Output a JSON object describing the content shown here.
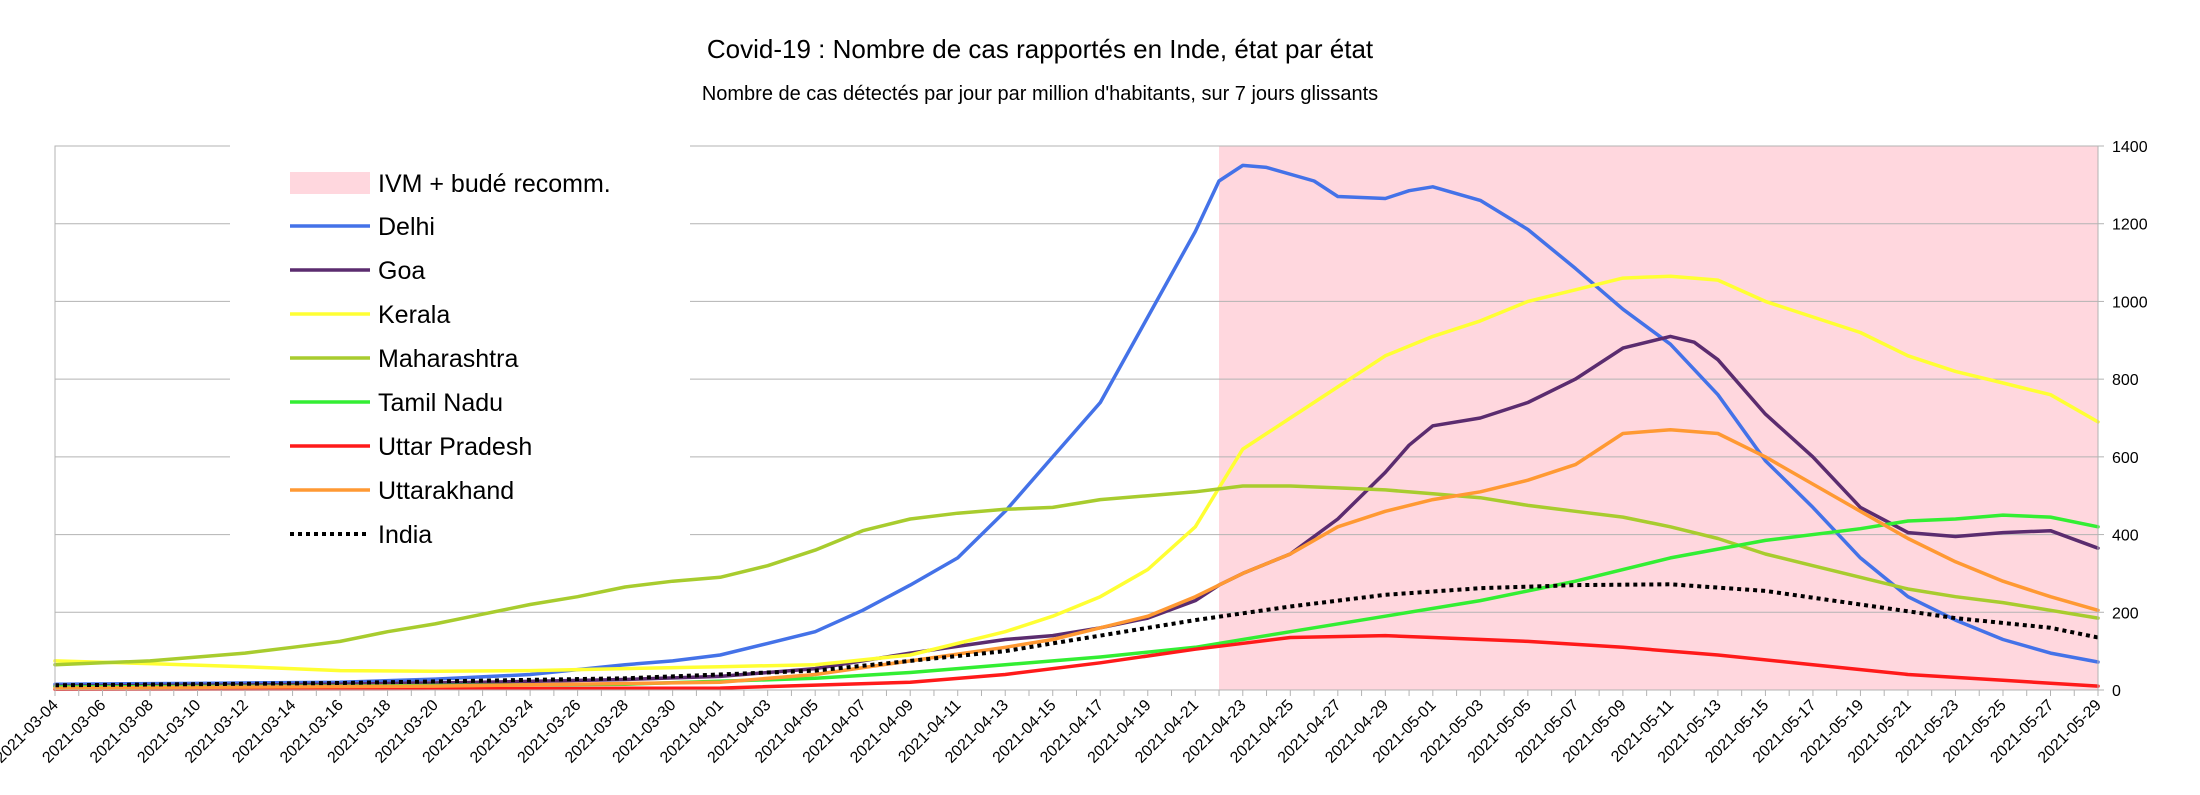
{
  "chart_data": {
    "type": "line",
    "title": "Covid-19 : Nombre de cas rapportés en Inde, état par état",
    "subtitle": "Nombre de cas détectés par jour par million d'habitants, sur 7 jours glissants",
    "xlabel": "",
    "ylabel": "",
    "y_axis_side": "right",
    "ylim": [
      0,
      1400
    ],
    "yticks": [
      0,
      200,
      400,
      600,
      800,
      1000,
      1200,
      1400
    ],
    "grid": true,
    "legend_position": "top-left",
    "x_start": "2021-03-04",
    "x_end": "2021-05-29",
    "x_tick_labels": [
      "2021-03-04",
      "2021-03-06",
      "2021-03-08",
      "2021-03-10",
      "2021-03-12",
      "2021-03-14",
      "2021-03-16",
      "2021-03-18",
      "2021-03-20",
      "2021-03-22",
      "2021-03-24",
      "2021-03-26",
      "2021-03-28",
      "2021-03-30",
      "2021-04-01",
      "2021-04-03",
      "2021-04-05",
      "2021-04-07",
      "2021-04-09",
      "2021-04-11",
      "2021-04-13",
      "2021-04-15",
      "2021-04-17",
      "2021-04-19",
      "2021-04-21",
      "2021-04-23",
      "2021-04-25",
      "2021-04-27",
      "2021-04-29",
      "2021-05-01",
      "2021-05-03",
      "2021-05-05",
      "2021-05-07",
      "2021-05-09",
      "2021-05-11",
      "2021-05-13",
      "2021-05-15",
      "2021-05-17",
      "2021-05-19",
      "2021-05-21",
      "2021-05-23",
      "2021-05-25",
      "2021-05-27",
      "2021-05-29"
    ],
    "shaded_region": {
      "name": "IVM + budé recomm.",
      "start": "2021-04-22",
      "end": "2021-05-29",
      "color": "#ffd7de"
    },
    "series": [
      {
        "name": "Delhi",
        "color": "#4472e8",
        "dashed": false,
        "points": [
          [
            "2021-03-04",
            15
          ],
          [
            "2021-03-10",
            17
          ],
          [
            "2021-03-16",
            20
          ],
          [
            "2021-03-20",
            28
          ],
          [
            "2021-03-24",
            40
          ],
          [
            "2021-03-28",
            65
          ],
          [
            "2021-03-30",
            75
          ],
          [
            "2021-04-01",
            90
          ],
          [
            "2021-04-03",
            120
          ],
          [
            "2021-04-05",
            150
          ],
          [
            "2021-04-07",
            205
          ],
          [
            "2021-04-09",
            270
          ],
          [
            "2021-04-11",
            340
          ],
          [
            "2021-04-13",
            460
          ],
          [
            "2021-04-15",
            600
          ],
          [
            "2021-04-17",
            740
          ],
          [
            "2021-04-19",
            960
          ],
          [
            "2021-04-21",
            1180
          ],
          [
            "2021-04-22",
            1310
          ],
          [
            "2021-04-23",
            1350
          ],
          [
            "2021-04-24",
            1345
          ],
          [
            "2021-04-26",
            1310
          ],
          [
            "2021-04-27",
            1270
          ],
          [
            "2021-04-29",
            1265
          ],
          [
            "2021-04-30",
            1285
          ],
          [
            "2021-05-01",
            1295
          ],
          [
            "2021-05-03",
            1260
          ],
          [
            "2021-05-05",
            1185
          ],
          [
            "2021-05-07",
            1085
          ],
          [
            "2021-05-09",
            980
          ],
          [
            "2021-05-11",
            890
          ],
          [
            "2021-05-13",
            760
          ],
          [
            "2021-05-15",
            590
          ],
          [
            "2021-05-17",
            470
          ],
          [
            "2021-05-19",
            340
          ],
          [
            "2021-05-21",
            240
          ],
          [
            "2021-05-23",
            180
          ],
          [
            "2021-05-25",
            130
          ],
          [
            "2021-05-27",
            95
          ],
          [
            "2021-05-29",
            72
          ]
        ]
      },
      {
        "name": "Goa",
        "color": "#5b2c6f",
        "dashed": false,
        "points": [
          [
            "2021-03-04",
            10
          ],
          [
            "2021-03-10",
            12
          ],
          [
            "2021-03-16",
            15
          ],
          [
            "2021-03-22",
            20
          ],
          [
            "2021-03-28",
            27
          ],
          [
            "2021-04-01",
            35
          ],
          [
            "2021-04-05",
            55
          ],
          [
            "2021-04-09",
            95
          ],
          [
            "2021-04-13",
            130
          ],
          [
            "2021-04-15",
            140
          ],
          [
            "2021-04-17",
            160
          ],
          [
            "2021-04-19",
            185
          ],
          [
            "2021-04-21",
            230
          ],
          [
            "2021-04-22",
            270
          ],
          [
            "2021-04-23",
            300
          ],
          [
            "2021-04-25",
            350
          ],
          [
            "2021-04-27",
            440
          ],
          [
            "2021-04-29",
            560
          ],
          [
            "2021-04-30",
            630
          ],
          [
            "2021-05-01",
            680
          ],
          [
            "2021-05-03",
            700
          ],
          [
            "2021-05-05",
            740
          ],
          [
            "2021-05-07",
            800
          ],
          [
            "2021-05-09",
            880
          ],
          [
            "2021-05-11",
            910
          ],
          [
            "2021-05-12",
            895
          ],
          [
            "2021-05-13",
            850
          ],
          [
            "2021-05-15",
            710
          ],
          [
            "2021-05-17",
            600
          ],
          [
            "2021-05-19",
            470
          ],
          [
            "2021-05-21",
            405
          ],
          [
            "2021-05-23",
            395
          ],
          [
            "2021-05-25",
            405
          ],
          [
            "2021-05-27",
            410
          ],
          [
            "2021-05-29",
            365
          ]
        ]
      },
      {
        "name": "Kerala",
        "color": "#ffff33",
        "dashed": false,
        "points": [
          [
            "2021-03-04",
            75
          ],
          [
            "2021-03-08",
            68
          ],
          [
            "2021-03-12",
            60
          ],
          [
            "2021-03-16",
            50
          ],
          [
            "2021-03-20",
            48
          ],
          [
            "2021-03-24",
            50
          ],
          [
            "2021-03-28",
            55
          ],
          [
            "2021-04-01",
            60
          ],
          [
            "2021-04-05",
            65
          ],
          [
            "2021-04-09",
            90
          ],
          [
            "2021-04-13",
            150
          ],
          [
            "2021-04-15",
            190
          ],
          [
            "2021-04-17",
            240
          ],
          [
            "2021-04-19",
            310
          ],
          [
            "2021-04-21",
            420
          ],
          [
            "2021-04-22",
            520
          ],
          [
            "2021-04-23",
            620
          ],
          [
            "2021-04-25",
            700
          ],
          [
            "2021-04-27",
            780
          ],
          [
            "2021-04-29",
            860
          ],
          [
            "2021-05-01",
            910
          ],
          [
            "2021-05-03",
            950
          ],
          [
            "2021-05-05",
            1000
          ],
          [
            "2021-05-07",
            1030
          ],
          [
            "2021-05-09",
            1060
          ],
          [
            "2021-05-11",
            1065
          ],
          [
            "2021-05-13",
            1055
          ],
          [
            "2021-05-15",
            1000
          ],
          [
            "2021-05-17",
            960
          ],
          [
            "2021-05-19",
            920
          ],
          [
            "2021-05-21",
            860
          ],
          [
            "2021-05-23",
            820
          ],
          [
            "2021-05-25",
            790
          ],
          [
            "2021-05-27",
            760
          ],
          [
            "2021-05-29",
            690
          ]
        ]
      },
      {
        "name": "Maharashtra",
        "color": "#a8cc2e",
        "dashed": false,
        "points": [
          [
            "2021-03-04",
            65
          ],
          [
            "2021-03-06",
            70
          ],
          [
            "2021-03-08",
            75
          ],
          [
            "2021-03-10",
            85
          ],
          [
            "2021-03-12",
            95
          ],
          [
            "2021-03-14",
            110
          ],
          [
            "2021-03-16",
            125
          ],
          [
            "2021-03-18",
            150
          ],
          [
            "2021-03-20",
            170
          ],
          [
            "2021-03-22",
            195
          ],
          [
            "2021-03-24",
            220
          ],
          [
            "2021-03-26",
            240
          ],
          [
            "2021-03-28",
            265
          ],
          [
            "2021-03-30",
            280
          ],
          [
            "2021-04-01",
            290
          ],
          [
            "2021-04-03",
            320
          ],
          [
            "2021-04-05",
            360
          ],
          [
            "2021-04-07",
            410
          ],
          [
            "2021-04-09",
            440
          ],
          [
            "2021-04-11",
            455
          ],
          [
            "2021-04-13",
            465
          ],
          [
            "2021-04-15",
            470
          ],
          [
            "2021-04-17",
            490
          ],
          [
            "2021-04-19",
            500
          ],
          [
            "2021-04-21",
            510
          ],
          [
            "2021-04-23",
            525
          ],
          [
            "2021-04-25",
            525
          ],
          [
            "2021-04-27",
            520
          ],
          [
            "2021-04-29",
            515
          ],
          [
            "2021-05-01",
            505
          ],
          [
            "2021-05-03",
            495
          ],
          [
            "2021-05-05",
            475
          ],
          [
            "2021-05-07",
            460
          ],
          [
            "2021-05-09",
            445
          ],
          [
            "2021-05-11",
            420
          ],
          [
            "2021-05-13",
            390
          ],
          [
            "2021-05-15",
            350
          ],
          [
            "2021-05-17",
            320
          ],
          [
            "2021-05-19",
            290
          ],
          [
            "2021-05-21",
            260
          ],
          [
            "2021-05-23",
            240
          ],
          [
            "2021-05-25",
            225
          ],
          [
            "2021-05-27",
            205
          ],
          [
            "2021-05-29",
            185
          ]
        ]
      },
      {
        "name": "Tamil Nadu",
        "color": "#33ee33",
        "dashed": false,
        "points": [
          [
            "2021-03-04",
            8
          ],
          [
            "2021-03-16",
            10
          ],
          [
            "2021-03-28",
            15
          ],
          [
            "2021-04-05",
            30
          ],
          [
            "2021-04-09",
            45
          ],
          [
            "2021-04-13",
            65
          ],
          [
            "2021-04-17",
            85
          ],
          [
            "2021-04-21",
            110
          ],
          [
            "2021-04-25",
            150
          ],
          [
            "2021-04-29",
            190
          ],
          [
            "2021-05-03",
            230
          ],
          [
            "2021-05-07",
            280
          ],
          [
            "2021-05-11",
            340
          ],
          [
            "2021-05-15",
            385
          ],
          [
            "2021-05-19",
            415
          ],
          [
            "2021-05-21",
            435
          ],
          [
            "2021-05-23",
            440
          ],
          [
            "2021-05-25",
            450
          ],
          [
            "2021-05-27",
            445
          ],
          [
            "2021-05-29",
            420
          ]
        ]
      },
      {
        "name": "Uttar Pradesh",
        "color": "#ff1a1a",
        "dashed": false,
        "points": [
          [
            "2021-03-04",
            2
          ],
          [
            "2021-03-20",
            3
          ],
          [
            "2021-04-01",
            5
          ],
          [
            "2021-04-09",
            20
          ],
          [
            "2021-04-13",
            40
          ],
          [
            "2021-04-17",
            70
          ],
          [
            "2021-04-21",
            105
          ],
          [
            "2021-04-25",
            135
          ],
          [
            "2021-04-29",
            140
          ],
          [
            "2021-05-01",
            135
          ],
          [
            "2021-05-05",
            125
          ],
          [
            "2021-05-09",
            110
          ],
          [
            "2021-05-13",
            90
          ],
          [
            "2021-05-17",
            65
          ],
          [
            "2021-05-21",
            40
          ],
          [
            "2021-05-25",
            25
          ],
          [
            "2021-05-29",
            10
          ]
        ]
      },
      {
        "name": "Uttarakhand",
        "color": "#ff9933",
        "dashed": false,
        "points": [
          [
            "2021-03-04",
            5
          ],
          [
            "2021-03-20",
            10
          ],
          [
            "2021-04-01",
            20
          ],
          [
            "2021-04-05",
            40
          ],
          [
            "2021-04-09",
            75
          ],
          [
            "2021-04-13",
            110
          ],
          [
            "2021-04-15",
            130
          ],
          [
            "2021-04-17",
            160
          ],
          [
            "2021-04-19",
            190
          ],
          [
            "2021-04-21",
            240
          ],
          [
            "2021-04-23",
            300
          ],
          [
            "2021-04-25",
            350
          ],
          [
            "2021-04-27",
            420
          ],
          [
            "2021-04-29",
            460
          ],
          [
            "2021-05-01",
            490
          ],
          [
            "2021-05-03",
            510
          ],
          [
            "2021-05-05",
            540
          ],
          [
            "2021-05-07",
            580
          ],
          [
            "2021-05-09",
            660
          ],
          [
            "2021-05-11",
            670
          ],
          [
            "2021-05-13",
            660
          ],
          [
            "2021-05-15",
            600
          ],
          [
            "2021-05-17",
            530
          ],
          [
            "2021-05-19",
            460
          ],
          [
            "2021-05-21",
            390
          ],
          [
            "2021-05-23",
            330
          ],
          [
            "2021-05-25",
            280
          ],
          [
            "2021-05-27",
            240
          ],
          [
            "2021-05-29",
            205
          ]
        ]
      },
      {
        "name": "India",
        "color": "#000000",
        "dashed": true,
        "points": [
          [
            "2021-03-04",
            12
          ],
          [
            "2021-03-16",
            18
          ],
          [
            "2021-03-28",
            30
          ],
          [
            "2021-04-05",
            50
          ],
          [
            "2021-04-09",
            75
          ],
          [
            "2021-04-13",
            100
          ],
          [
            "2021-04-17",
            140
          ],
          [
            "2021-04-21",
            180
          ],
          [
            "2021-04-25",
            215
          ],
          [
            "2021-04-29",
            245
          ],
          [
            "2021-05-03",
            262
          ],
          [
            "2021-05-07",
            270
          ],
          [
            "2021-05-11",
            272
          ],
          [
            "2021-05-15",
            255
          ],
          [
            "2021-05-19",
            220
          ],
          [
            "2021-05-23",
            185
          ],
          [
            "2021-05-27",
            160
          ],
          [
            "2021-05-29",
            135
          ]
        ]
      }
    ]
  }
}
